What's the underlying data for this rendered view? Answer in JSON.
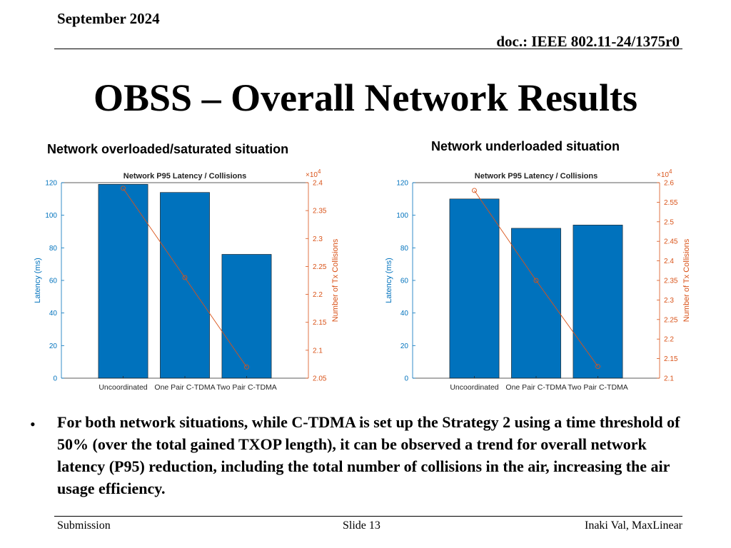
{
  "header": {
    "date": "September 2024",
    "doc": "doc.: IEEE 802.11-24/1375r0"
  },
  "title": "OBSS – Overall Network Results",
  "left_panel": {
    "heading": "Network overloaded/saturated situation"
  },
  "right_panel": {
    "heading": "Network underloaded situation"
  },
  "chart_data": [
    {
      "type": "bar",
      "title": "Network P95 Latency / Collisions",
      "categories": [
        "Uncoordinated",
        "One Pair C-TDMA",
        "Two Pair C-TDMA"
      ],
      "ylabel": "Latency (ms)",
      "ylim": [
        0,
        120
      ],
      "yticks": [
        0,
        20,
        40,
        60,
        80,
        100,
        120
      ],
      "y2label": "Number of Tx Collisions",
      "y2_exponent": "×10^4",
      "y2lim": [
        2.05,
        2.4
      ],
      "y2ticks": [
        "2.05",
        "2.1",
        "2.15",
        "2.2",
        "2.25",
        "2.3",
        "2.35",
        "2.4"
      ],
      "series": [
        {
          "values": [
            119,
            114,
            76
          ],
          "axis": "left",
          "color": "#0072bd"
        },
        {
          "values": [
            2.39,
            2.23,
            2.07
          ],
          "axis": "right",
          "color": "#d95319",
          "mark": "line-circle"
        }
      ],
      "grid": false
    },
    {
      "type": "bar",
      "title": "Network P95 Latency / Collisions",
      "categories": [
        "Uncoordinated",
        "One Pair C-TDMA",
        "Two Pair C-TDMA"
      ],
      "ylabel": "Latency (ms)",
      "ylim": [
        0,
        120
      ],
      "yticks": [
        0,
        20,
        40,
        60,
        80,
        100,
        120
      ],
      "y2label": "Number of Tx Collisions",
      "y2_exponent": "×10^4",
      "y2lim": [
        2.1,
        2.6
      ],
      "y2ticks": [
        "2.1",
        "2.15",
        "2.2",
        "2.25",
        "2.3",
        "2.35",
        "2.4",
        "2.45",
        "2.5",
        "2.55",
        "2.6"
      ],
      "series": [
        {
          "values": [
            110,
            92,
            94
          ],
          "axis": "left",
          "color": "#0072bd"
        },
        {
          "values": [
            2.58,
            2.35,
            2.13
          ],
          "axis": "right",
          "color": "#d95319",
          "mark": "line-circle"
        }
      ],
      "grid": false
    }
  ],
  "bullet": "For both network situations, while C-TDMA is set up the Strategy 2 using a time threshold of 50% (over the total gained TXOP length), it can be observed a trend for overall network latency (P95) reduction, including the total number of collisions in the air, increasing the air usage efficiency.",
  "footer": {
    "left": "Submission",
    "center": "Slide 13",
    "right": "Inaki Val, MaxLinear"
  }
}
